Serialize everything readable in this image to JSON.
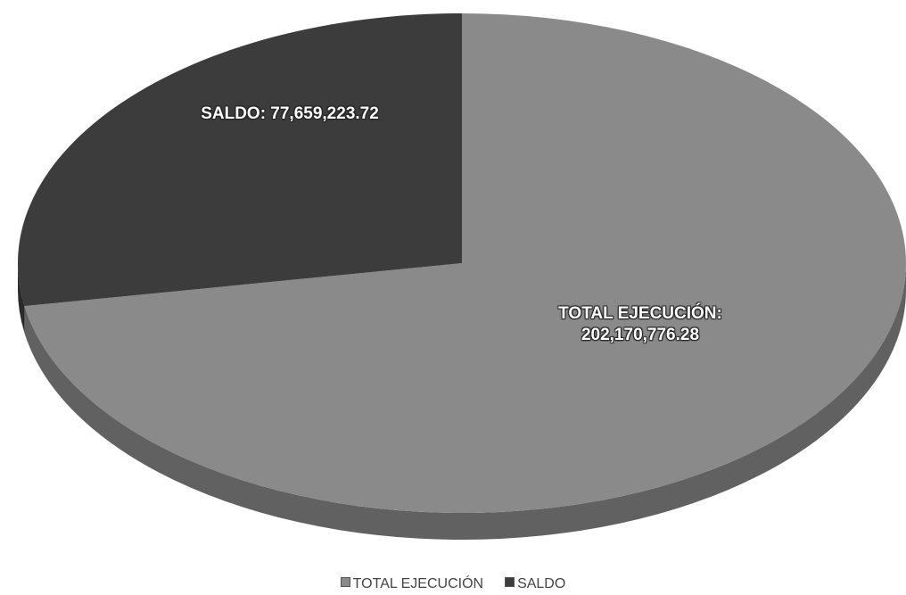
{
  "chart_data": {
    "type": "pie3d",
    "categories": [
      "TOTAL EJECUCIÓN",
      "SALDO"
    ],
    "values": [
      202170776.28,
      77659223.72
    ],
    "value_labels": [
      "TOTAL EJECUCIÓN: 202,170,776.28",
      "SALDO: 77,659,223.72"
    ],
    "colors": [
      "#8a8a8a",
      "#3c3c3c"
    ],
    "legend": "bottom"
  }
}
